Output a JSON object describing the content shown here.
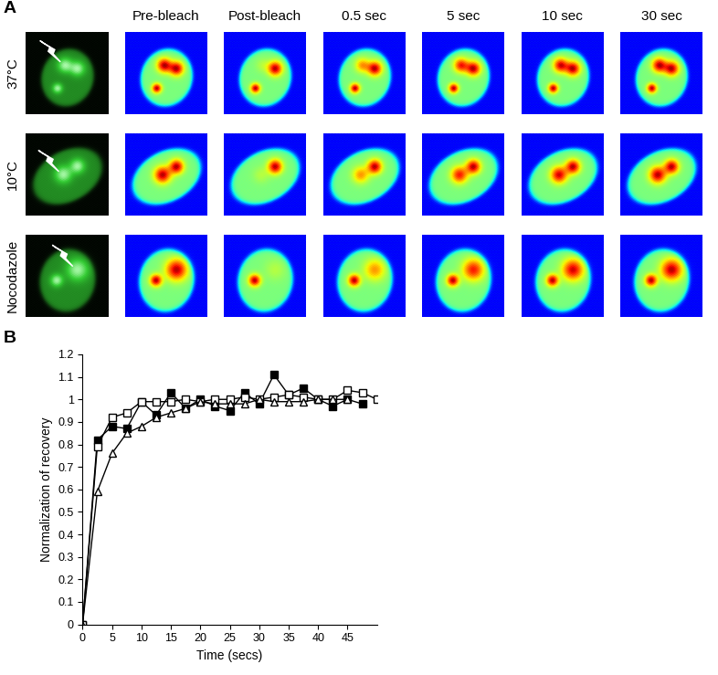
{
  "panel_labels": [
    "A",
    "B"
  ],
  "panel_a": {
    "column_labels": [
      "Pre-bleach",
      "Post-bleach",
      "0.5 sec",
      "5 sec",
      "10 sec",
      "30 sec"
    ],
    "row_labels": [
      "37°C",
      "10°C",
      "Nocodazole"
    ]
  },
  "chart_data": {
    "type": "line",
    "x_label": "Time (secs)",
    "y_label": "Normalization of recovery",
    "xlim": [
      0,
      50
    ],
    "xticks": [
      0,
      5,
      10,
      15,
      20,
      25,
      30,
      35,
      40,
      45
    ],
    "ylim": [
      0,
      1.2
    ],
    "yticks": [
      0,
      0.1,
      0.2,
      0.3,
      0.4,
      0.5,
      0.6,
      0.7,
      0.8,
      0.9,
      1,
      1.1,
      1.2
    ],
    "series": [
      {
        "color": "#000000",
        "marker": "square_filled",
        "x": [
          0,
          2.5,
          5,
          7.5,
          10,
          12.5,
          15,
          17.5,
          20,
          22.5,
          25,
          27.5,
          30,
          32.5,
          35,
          37.5,
          40,
          42.5,
          45,
          47.5
        ],
        "values": [
          0,
          0.82,
          0.88,
          0.87,
          0.99,
          0.93,
          1.03,
          0.96,
          1.0,
          0.97,
          0.95,
          1.03,
          0.98,
          1.11,
          1.02,
          1.05,
          1.0,
          0.97,
          1.0,
          0.98
        ]
      },
      {
        "color": "#000000",
        "marker": "square_open",
        "x": [
          0,
          2.5,
          5,
          7.5,
          10,
          12.5,
          15,
          17.5,
          20,
          22.5,
          25,
          27.5,
          30,
          32.5,
          35,
          37.5,
          40,
          42.5,
          45,
          47.5,
          50
        ],
        "values": [
          0,
          0.79,
          0.92,
          0.94,
          0.99,
          0.99,
          0.99,
          1.0,
          0.99,
          1.0,
          1.0,
          1.01,
          1.0,
          1.01,
          1.02,
          1.01,
          1.0,
          1.0,
          1.04,
          1.03,
          1.0
        ]
      },
      {
        "color": "#000000",
        "marker": "triangle_open",
        "x": [
          0,
          2.5,
          5,
          7.5,
          10,
          12.5,
          15,
          17.5,
          20,
          22.5,
          25,
          27.5,
          30,
          32.5,
          35,
          37.5,
          40,
          42.5,
          45
        ],
        "values": [
          0,
          0.59,
          0.76,
          0.85,
          0.88,
          0.92,
          0.94,
          0.96,
          0.99,
          0.98,
          0.98,
          0.98,
          1.0,
          0.99,
          0.99,
          0.99,
          1.0,
          1.0,
          1.0
        ]
      }
    ]
  }
}
